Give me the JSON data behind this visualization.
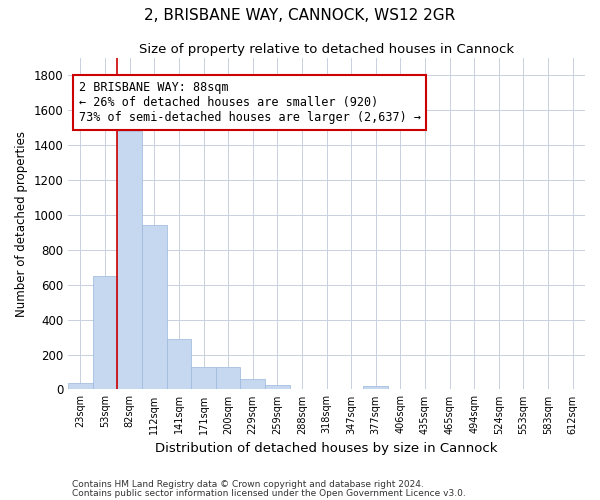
{
  "title_line1": "2, BRISBANE WAY, CANNOCK, WS12 2GR",
  "title_line2": "Size of property relative to detached houses in Cannock",
  "xlabel": "Distribution of detached houses by size in Cannock",
  "ylabel": "Number of detached properties",
  "categories": [
    "23sqm",
    "53sqm",
    "82sqm",
    "112sqm",
    "141sqm",
    "171sqm",
    "200sqm",
    "229sqm",
    "259sqm",
    "288sqm",
    "318sqm",
    "347sqm",
    "377sqm",
    "406sqm",
    "435sqm",
    "465sqm",
    "494sqm",
    "524sqm",
    "553sqm",
    "583sqm",
    "612sqm"
  ],
  "values": [
    38,
    650,
    1480,
    940,
    290,
    130,
    130,
    62,
    25,
    0,
    0,
    0,
    18,
    0,
    0,
    0,
    0,
    0,
    0,
    0,
    0
  ],
  "bar_color": "#c5d8f0",
  "bar_edge_color": "#9ab8da",
  "vline_index": 2,
  "vline_color": "#cc0000",
  "annotation_text": "2 BRISBANE WAY: 88sqm\n← 26% of detached houses are smaller (920)\n73% of semi-detached houses are larger (2,637) →",
  "annotation_box_color": "#ffffff",
  "annotation_box_edge": "#cc0000",
  "ylim": [
    0,
    1900
  ],
  "yticks": [
    0,
    200,
    400,
    600,
    800,
    1000,
    1200,
    1400,
    1600,
    1800
  ],
  "footer_line1": "Contains HM Land Registry data © Crown copyright and database right 2024.",
  "footer_line2": "Contains public sector information licensed under the Open Government Licence v3.0.",
  "bg_color": "#ffffff",
  "plot_bg_color": "#ffffff",
  "grid_color": "#c8d0e0"
}
